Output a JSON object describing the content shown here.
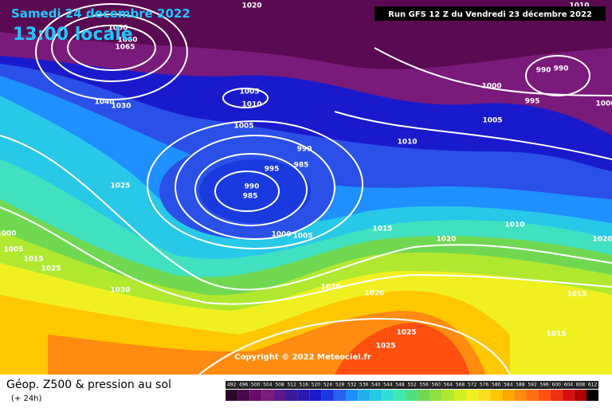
{
  "header": {
    "date": "Samedi 24 decembre 2022",
    "time": "13:00 locale",
    "run": "Run GFS 12 Z du Vendredi 23 décembre 2022"
  },
  "isobar_labels": [
    "1020",
    "1010",
    "1050",
    "1060",
    "1065",
    "1040",
    "1030",
    "1005",
    "1010",
    "1005",
    "1000",
    "990",
    "990",
    "995",
    "1005",
    "1000",
    "1010",
    "990",
    "995",
    "985",
    "990",
    "985",
    "1025",
    "1000",
    "1005",
    "1015",
    "1020",
    "1010",
    "1000",
    "1005",
    "1015",
    "1025",
    "1030",
    "1020",
    "1020",
    "1025",
    "1025",
    "1015",
    "1015",
    "1020"
  ],
  "copyright": "Copyright © 2022 Meteociel.fr",
  "footer": {
    "title": "Géop. Z500 & pression au sol",
    "lead": "(+ 24h)"
  },
  "legend": {
    "labels": [
      "492",
      "496",
      "500",
      "504",
      "508",
      "512",
      "516",
      "520",
      "524",
      "528",
      "532",
      "536",
      "540",
      "544",
      "548",
      "552",
      "556",
      "560",
      "564",
      "568",
      "572",
      "576",
      "580",
      "584",
      "588",
      "592",
      "596",
      "600",
      "604",
      "608",
      "612"
    ],
    "colors": [
      "#2a0a2a",
      "#4a0a4a",
      "#6a0a6a",
      "#7a1a7a",
      "#5a1a8a",
      "#3a1a9a",
      "#2a1ab0",
      "#1a1acd",
      "#1a3ae0",
      "#2a60f0",
      "#1e90ff",
      "#20b0f0",
      "#28c8e8",
      "#30e0d8",
      "#40e8b0",
      "#50e080",
      "#70d850",
      "#90e040",
      "#b0e830",
      "#d0f020",
      "#f0f020",
      "#f8e020",
      "#ffc800",
      "#ffa800",
      "#ff8c10",
      "#ff7010",
      "#ff5010",
      "#f03010",
      "#d81010",
      "#b00000",
      "#000000"
    ]
  }
}
